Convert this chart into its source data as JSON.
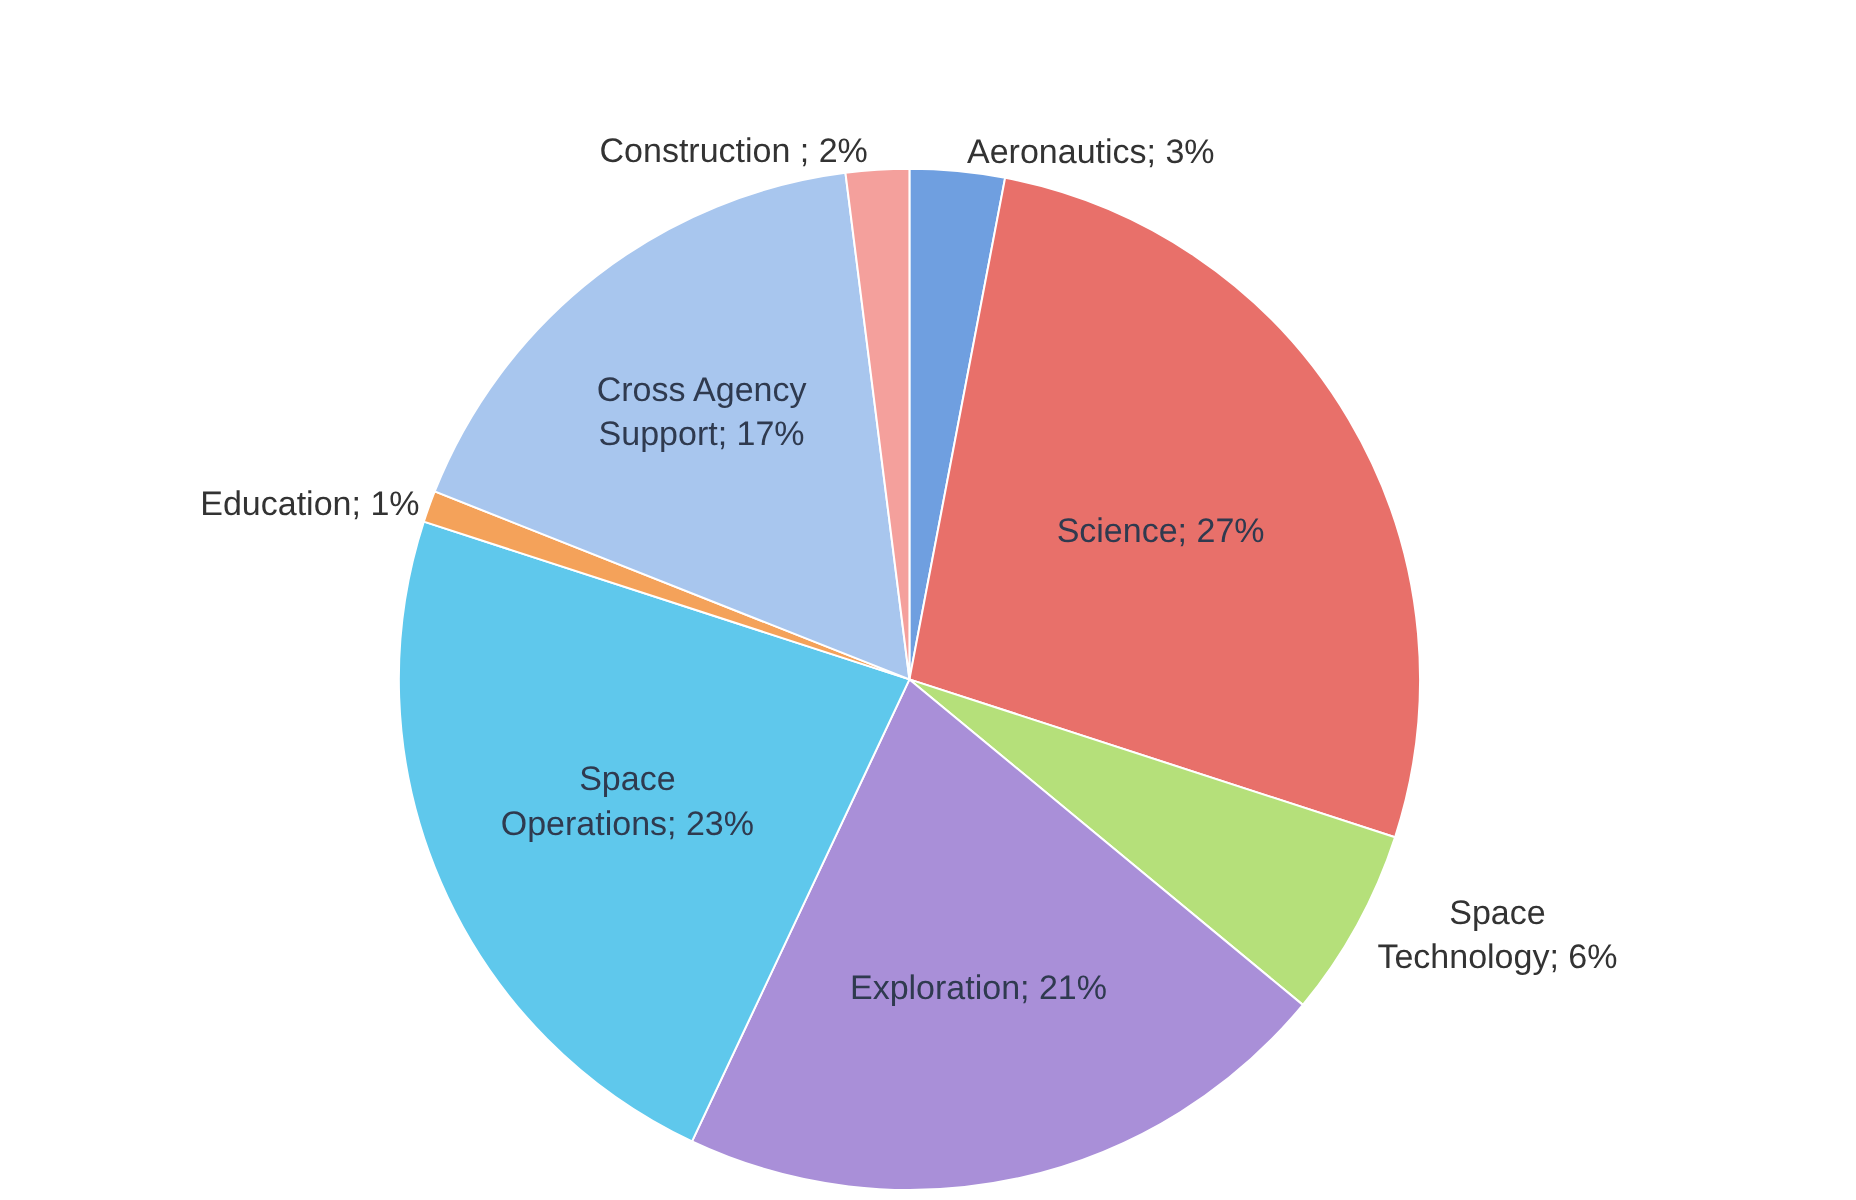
{
  "chart_data": {
    "type": "pie",
    "categories": [
      "Aeronautics",
      "Science",
      "Space Technology",
      "Exploration",
      "Space Operations",
      "Education",
      "Cross Agency Support",
      "Construction "
    ],
    "values": [
      3,
      27,
      6,
      21,
      23,
      1,
      17,
      2
    ],
    "value_labels": [
      "3%",
      "27%",
      "6%",
      "21%",
      "23%",
      "1%",
      "17%",
      "2%"
    ],
    "colors": [
      "#6f9fe0",
      "#e8706a",
      "#b5e07a",
      "#a98fd8",
      "#5fc8ec",
      "#f4a25a",
      "#a8c6ee",
      "#f4a09c"
    ],
    "legend": false
  }
}
